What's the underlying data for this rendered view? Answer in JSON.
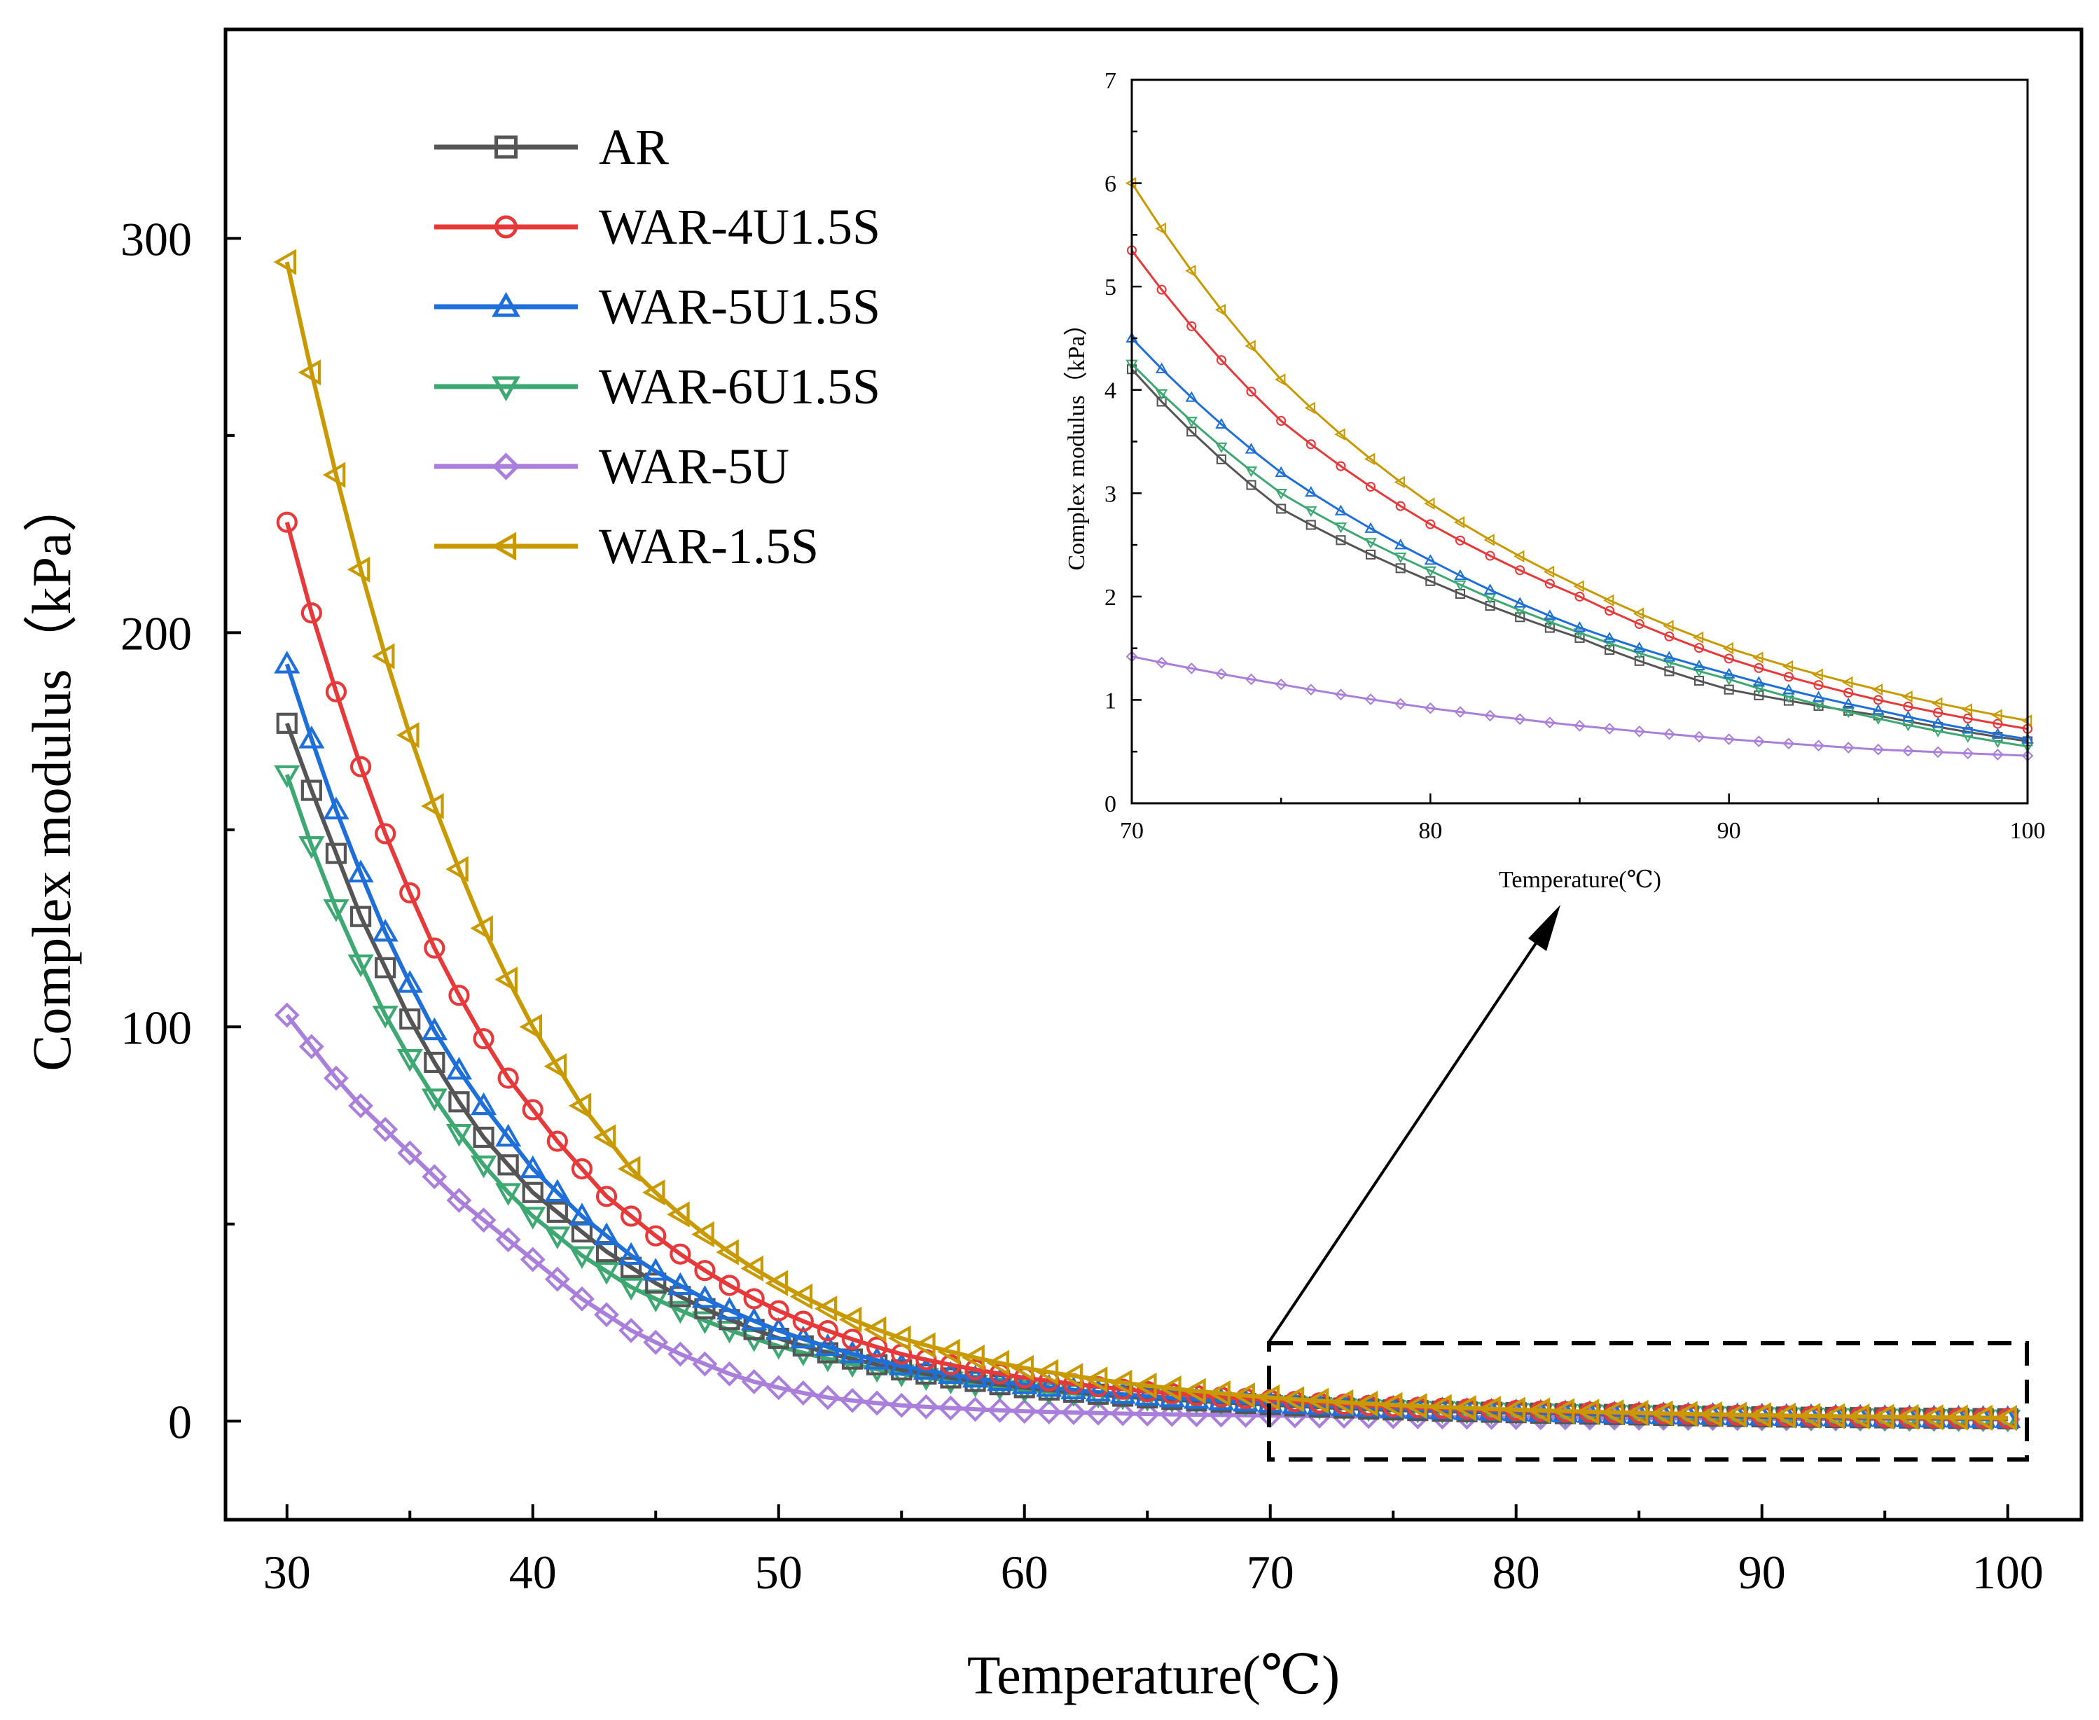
{
  "chart_data": [
    {
      "type": "line",
      "title": "",
      "xlabel": "Temperature(℃)",
      "ylabel": "Complex modulus（kPa）",
      "xlim": [
        27.5,
        103
      ],
      "ylim": [
        -25,
        353
      ],
      "xticks": [
        "30",
        "40",
        "50",
        "60",
        "70",
        "80",
        "90",
        "100"
      ],
      "yticks": [
        "0",
        "100",
        "200",
        "300"
      ],
      "legend_position": "top-left",
      "grid": false,
      "series": [
        {
          "name": "AR",
          "color": "#555555",
          "marker": "square",
          "anchors": {
            "30": 177,
            "31": 160,
            "32": 144,
            "33": 128,
            "34": 115,
            "35": 102,
            "36": 91,
            "37": 81,
            "38": 72,
            "39": 65,
            "40": 58,
            "41": 53,
            "42": 48,
            "43": 43,
            "44": 39,
            "45": 35,
            "50": 21,
            "55": 13,
            "60": 8.5,
            "65": 5.9,
            "70": 4.2,
            "75": 2.85,
            "80": 2.15,
            "85": 1.6,
            "90": 1.1,
            "95": 0.85,
            "100": 0.6
          }
        },
        {
          "name": "WAR-4U1.5S",
          "color": "#e8393a",
          "marker": "circle",
          "anchors": {
            "30": 228,
            "31": 205,
            "32": 185,
            "33": 166,
            "34": 149,
            "35": 134,
            "36": 120,
            "37": 108,
            "38": 97,
            "39": 87,
            "40": 79,
            "41": 71,
            "42": 64,
            "43": 57,
            "44": 52,
            "45": 47,
            "50": 28,
            "55": 17,
            "60": 11,
            "65": 7.5,
            "70": 5.35,
            "75": 3.7,
            "80": 2.7,
            "85": 2.0,
            "90": 1.4,
            "95": 1.0,
            "100": 0.72
          }
        },
        {
          "name": "WAR-5U1.5S",
          "color": "#1e6fd9",
          "marker": "triangle-up",
          "anchors": {
            "30": 192,
            "31": 173,
            "32": 155,
            "33": 139,
            "34": 124,
            "35": 111,
            "36": 99,
            "37": 89,
            "38": 80,
            "39": 72,
            "40": 64,
            "41": 58,
            "42": 52,
            "43": 47,
            "44": 42,
            "45": 38,
            "50": 23,
            "55": 14,
            "60": 9.2,
            "65": 6.3,
            "70": 4.5,
            "75": 3.2,
            "80": 2.35,
            "85": 1.7,
            "90": 1.25,
            "95": 0.9,
            "100": 0.62
          }
        },
        {
          "name": "WAR-6U1.5S",
          "color": "#3da872",
          "marker": "triangle-down",
          "anchors": {
            "30": 164,
            "31": 146,
            "32": 130,
            "33": 116,
            "34": 103,
            "35": 92,
            "36": 82,
            "37": 73,
            "38": 65,
            "39": 58,
            "40": 52,
            "41": 47,
            "42": 42,
            "43": 38,
            "44": 34,
            "45": 31,
            "50": 19,
            "55": 12,
            "60": 8,
            "65": 5.8,
            "70": 4.25,
            "75": 3.0,
            "80": 2.25,
            "85": 1.65,
            "90": 1.2,
            "95": 0.82,
            "100": 0.55
          }
        },
        {
          "name": "WAR-5U",
          "color": "#a97fdb",
          "marker": "diamond",
          "anchors": {
            "30": 103,
            "31": 95,
            "32": 87,
            "33": 80,
            "34": 74,
            "35": 68,
            "36": 62,
            "37": 56,
            "38": 51,
            "39": 46,
            "40": 41,
            "41": 36,
            "42": 31,
            "43": 27,
            "44": 23,
            "45": 20,
            "46": 17,
            "47": 14.5,
            "48": 12,
            "49": 10,
            "50": 8.5,
            "52": 6,
            "55": 4,
            "60": 2.5,
            "65": 1.8,
            "70": 1.42,
            "75": 1.15,
            "80": 0.92,
            "85": 0.75,
            "90": 0.62,
            "95": 0.52,
            "100": 0.46
          }
        },
        {
          "name": "WAR-1.5S",
          "color": "#c89a00",
          "marker": "triangle-left",
          "anchors": {
            "30": 294,
            "31": 266,
            "32": 240,
            "33": 216,
            "34": 194,
            "35": 174,
            "36": 156,
            "37": 140,
            "38": 125,
            "39": 112,
            "40": 100,
            "41": 90,
            "42": 80,
            "43": 72,
            "44": 64,
            "45": 58,
            "50": 35,
            "55": 21,
            "60": 13.5,
            "65": 9,
            "70": 6.0,
            "75": 4.1,
            "80": 2.9,
            "85": 2.1,
            "90": 1.5,
            "95": 1.1,
            "100": 0.8
          }
        }
      ]
    },
    {
      "type": "line",
      "title": "",
      "xlabel": "Temperature(℃)",
      "ylabel": "Complex modulus（kPa）",
      "xlim": [
        70,
        100
      ],
      "ylim": [
        0,
        7
      ],
      "xticks": [
        "70",
        "80",
        "90",
        "100"
      ],
      "yticks": [
        "0",
        "1",
        "2",
        "3",
        "4",
        "5",
        "6",
        "7"
      ],
      "legend_position": "none",
      "grid": false,
      "note": "zoomed inset of the main chart for Temperature 70 to 100, same series"
    }
  ]
}
